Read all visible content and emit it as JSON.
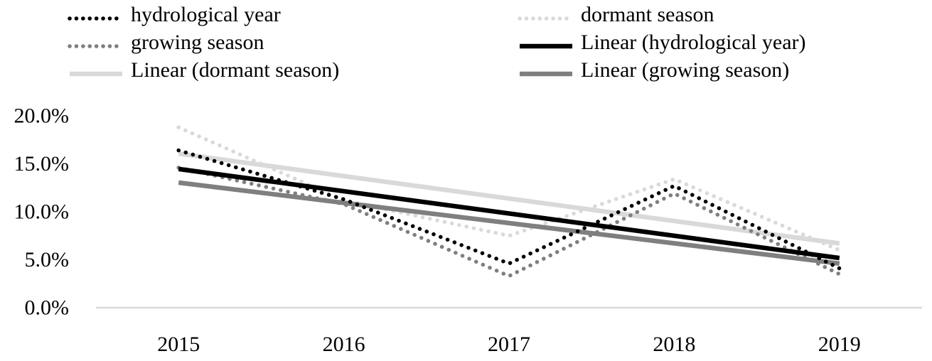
{
  "chart_data": {
    "type": "line",
    "title": "",
    "xlabel": "",
    "ylabel": "",
    "x": [
      "2015",
      "2016",
      "2017",
      "2018",
      "2019"
    ],
    "series": [
      {
        "name": "hydrological year",
        "color": "#000000",
        "style": "dotted",
        "values": [
          16.4,
          11.3,
          4.6,
          12.7,
          4.1
        ]
      },
      {
        "name": "dormant season",
        "color": "#D9D9D9",
        "style": "dotted",
        "values": [
          18.8,
          11.2,
          7.5,
          13.4,
          6.0
        ]
      },
      {
        "name": "growing season",
        "color": "#7F7F7F",
        "style": "dotted",
        "values": [
          14.6,
          10.8,
          3.3,
          11.9,
          3.5
        ]
      }
    ],
    "trendlines": [
      {
        "name": "Linear (hydrological year)",
        "series": "hydrological year",
        "color": "#000000"
      },
      {
        "name": "Linear (dormant season)",
        "series": "dormant season",
        "color": "#D9D9D9"
      },
      {
        "name": "Linear (growing season)",
        "series": "growing season",
        "color": "#7F7F7F"
      }
    ],
    "draw_order": [
      "dormant season",
      "growing season",
      "hydrological year"
    ],
    "y_ticks": [
      {
        "label": "20.0%",
        "value": 20
      },
      {
        "label": "15.0%",
        "value": 15
      },
      {
        "label": "10.0%",
        "value": 10
      },
      {
        "label": "5.0%",
        "value": 5
      },
      {
        "label": "0.0%",
        "value": 0
      }
    ],
    "ylim": [
      0,
      20
    ],
    "grid": false,
    "axis_color": "#D9D9D9",
    "legend_position": "top"
  },
  "legend": {
    "columns": [
      {
        "items": [
          {
            "label": "hydrological year",
            "color": "#000000",
            "style": "dotted"
          },
          {
            "label": "growing season",
            "color": "#7F7F7F",
            "style": "dotted"
          },
          {
            "label": "Linear (dormant season)",
            "color": "#D9D9D9",
            "style": "solid"
          }
        ]
      },
      {
        "items": [
          {
            "label": "dormant season",
            "color": "#D9D9D9",
            "style": "dotted"
          },
          {
            "label": "Linear (hydrological year)",
            "color": "#000000",
            "style": "solid"
          },
          {
            "label": "Linear (growing season)",
            "color": "#7F7F7F",
            "style": "solid"
          }
        ]
      }
    ]
  }
}
